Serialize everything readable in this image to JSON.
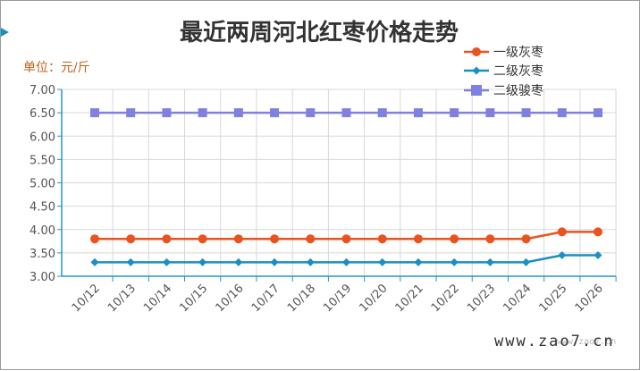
{
  "chart_data": {
    "type": "line",
    "title": "最近两周河北红枣价格走势",
    "unit_label": "单位：元/斤",
    "categories": [
      "10/12",
      "10/13",
      "10/14",
      "10/15",
      "10/16",
      "10/17",
      "10/18",
      "10/19",
      "10/20",
      "10/21",
      "10/22",
      "10/23",
      "10/24",
      "10/25",
      "10/26"
    ],
    "series": [
      {
        "name": "一级灰枣",
        "color": "#e8531f",
        "marker": "circle",
        "values": [
          3.8,
          3.8,
          3.8,
          3.8,
          3.8,
          3.8,
          3.8,
          3.8,
          3.8,
          3.8,
          3.8,
          3.8,
          3.8,
          3.95,
          3.95
        ]
      },
      {
        "name": "二级灰枣",
        "color": "#1b8fbf",
        "marker": "diamond",
        "values": [
          3.3,
          3.3,
          3.3,
          3.3,
          3.3,
          3.3,
          3.3,
          3.3,
          3.3,
          3.3,
          3.3,
          3.3,
          3.3,
          3.45,
          3.45
        ]
      },
      {
        "name": "二级骏枣",
        "color": "#8080e0",
        "marker": "square",
        "values": [
          6.5,
          6.5,
          6.5,
          6.5,
          6.5,
          6.5,
          6.5,
          6.5,
          6.5,
          6.5,
          6.5,
          6.5,
          6.5,
          6.5,
          6.5
        ]
      }
    ],
    "y_ticks": [
      "3.00",
      "3.50",
      "4.00",
      "4.50",
      "5.00",
      "5.50",
      "6.00",
      "6.50",
      "7.00"
    ],
    "ylim": [
      3.0,
      7.0
    ],
    "grid": true,
    "legend_position": "top-right",
    "colors": {
      "title": "#333333",
      "unit": "#c0621c",
      "axis": "#2a93c7",
      "grid": "#d8d8d8",
      "tick_text": "#555555"
    }
  },
  "watermark": {
    "main": "www.zao7.cn",
    "small": "www.zao7.cn"
  }
}
